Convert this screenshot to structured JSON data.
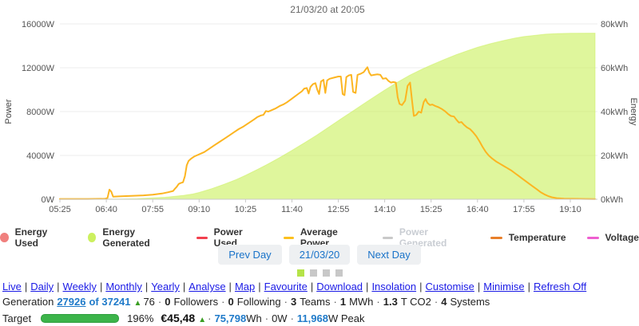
{
  "colors": {
    "accent-blue": "#1a73c9",
    "link-blue": "#1a1ae6",
    "stat-blue": "#1f7ac9",
    "up-green": "#3a9e23",
    "bar-green": "#3cb44a",
    "bar-green-border": "#2f9e3e",
    "dot-active": "#b5e348",
    "dot-inactive": "#c8c8c8",
    "legend-disabled": "#c9cdd3"
  },
  "chart_data": {
    "type": "area+line",
    "title": "21/03/20 at 20:05",
    "x_axis": {
      "range": [
        "05:25",
        "19:50"
      ],
      "ticks": [
        "05:25",
        "06:40",
        "07:55",
        "09:10",
        "10:25",
        "11:40",
        "12:55",
        "14:10",
        "15:25",
        "16:40",
        "17:55",
        "19:10"
      ]
    },
    "y_left": {
      "label": "Power",
      "max": 16000,
      "ticks": [
        "16000W",
        "12000W",
        "8000W",
        "4000W",
        "0W"
      ]
    },
    "y_right": {
      "label": "Energy",
      "max": 80,
      "ticks": [
        "80kWh",
        "60kWh",
        "40kWh",
        "20kWh",
        "0kWh"
      ]
    },
    "series": [
      {
        "name": "Energy Generated",
        "type": "area",
        "axis": "right",
        "color": "#ccf05f",
        "fill": "#ccf05f",
        "points": [
          [
            "05:25",
            0
          ],
          [
            "07:00",
            0.1
          ],
          [
            "07:30",
            0.3
          ],
          [
            "07:55",
            0.6
          ],
          [
            "08:15",
            0.9
          ],
          [
            "08:30",
            1.3
          ],
          [
            "08:45",
            1.8
          ],
          [
            "09:00",
            2.4
          ],
          [
            "09:10",
            3.1
          ],
          [
            "09:30",
            4.8
          ],
          [
            "09:50",
            6.8
          ],
          [
            "10:10",
            9.0
          ],
          [
            "10:25",
            10.9
          ],
          [
            "10:45",
            13.7
          ],
          [
            "11:00",
            15.9
          ],
          [
            "11:20",
            19.0
          ],
          [
            "11:40",
            22.3
          ],
          [
            "12:00",
            25.7
          ],
          [
            "12:20",
            29.2
          ],
          [
            "12:40",
            33.0
          ],
          [
            "13:00",
            36.8
          ],
          [
            "13:20",
            40.5
          ],
          [
            "13:40",
            44.3
          ],
          [
            "14:00",
            48.0
          ],
          [
            "14:10",
            49.8
          ],
          [
            "14:30",
            53.3
          ],
          [
            "14:50",
            56.5
          ],
          [
            "15:10",
            59.3
          ],
          [
            "15:25",
            61.2
          ],
          [
            "15:45",
            63.6
          ],
          [
            "16:05",
            65.9
          ],
          [
            "16:25",
            67.9
          ],
          [
            "16:40",
            69.3
          ],
          [
            "17:00",
            70.9
          ],
          [
            "17:20",
            72.3
          ],
          [
            "17:40",
            73.5
          ],
          [
            "17:55",
            74.2
          ],
          [
            "18:10",
            74.7
          ],
          [
            "18:30",
            75.3
          ],
          [
            "18:50",
            75.6
          ],
          [
            "19:10",
            75.75
          ],
          [
            "19:50",
            75.8
          ]
        ]
      },
      {
        "name": "Average Power",
        "type": "line",
        "axis": "left",
        "color": "#fcb521",
        "points": [
          [
            "05:25",
            30
          ],
          [
            "06:10",
            30
          ],
          [
            "06:38",
            40
          ],
          [
            "06:42",
            120
          ],
          [
            "06:45",
            880
          ],
          [
            "06:48",
            700
          ],
          [
            "06:51",
            240
          ],
          [
            "07:00",
            260
          ],
          [
            "07:20",
            310
          ],
          [
            "07:40",
            360
          ],
          [
            "07:55",
            420
          ],
          [
            "08:10",
            520
          ],
          [
            "08:20",
            640
          ],
          [
            "08:28",
            760
          ],
          [
            "08:30",
            900
          ],
          [
            "08:34",
            1150
          ],
          [
            "08:37",
            1400
          ],
          [
            "08:40",
            1480
          ],
          [
            "08:44",
            1550
          ],
          [
            "08:47",
            2100
          ],
          [
            "08:50",
            3100
          ],
          [
            "08:53",
            3500
          ],
          [
            "08:57",
            3700
          ],
          [
            "09:02",
            3900
          ],
          [
            "09:10",
            4100
          ],
          [
            "09:18",
            4300
          ],
          [
            "09:26",
            4600
          ],
          [
            "09:34",
            4900
          ],
          [
            "09:42",
            5200
          ],
          [
            "09:50",
            5500
          ],
          [
            "09:58",
            5800
          ],
          [
            "10:06",
            6100
          ],
          [
            "10:14",
            6400
          ],
          [
            "10:22",
            6650
          ],
          [
            "10:30",
            6950
          ],
          [
            "10:38",
            7250
          ],
          [
            "10:44",
            7500
          ],
          [
            "10:50",
            7650
          ],
          [
            "10:54",
            7700
          ],
          [
            "10:58",
            8050
          ],
          [
            "11:02",
            8000
          ],
          [
            "11:08",
            8150
          ],
          [
            "11:14",
            8300
          ],
          [
            "11:20",
            8500
          ],
          [
            "11:26",
            8650
          ],
          [
            "11:32",
            8850
          ],
          [
            "11:38",
            9100
          ],
          [
            "11:44",
            9350
          ],
          [
            "11:50",
            9600
          ],
          [
            "11:56",
            9850
          ],
          [
            "12:00",
            10100
          ],
          [
            "12:04",
            10150
          ],
          [
            "12:07",
            9650
          ],
          [
            "12:10",
            10250
          ],
          [
            "12:14",
            10500
          ],
          [
            "12:18",
            10600
          ],
          [
            "12:21",
            10000
          ],
          [
            "12:24",
            9600
          ],
          [
            "12:27",
            10750
          ],
          [
            "12:31",
            10900
          ],
          [
            "12:34",
            9700
          ],
          [
            "12:37",
            10850
          ],
          [
            "12:41",
            11000
          ],
          [
            "12:48",
            11100
          ],
          [
            "12:55",
            11200
          ],
          [
            "12:59",
            11200
          ],
          [
            "13:02",
            9600
          ],
          [
            "13:05",
            9500
          ],
          [
            "13:08",
            11150
          ],
          [
            "13:12",
            11300
          ],
          [
            "13:16",
            11350
          ],
          [
            "13:19",
            9800
          ],
          [
            "13:23",
            9700
          ],
          [
            "13:26",
            11350
          ],
          [
            "13:31",
            11450
          ],
          [
            "13:36",
            11600
          ],
          [
            "13:40",
            11900
          ],
          [
            "13:42",
            12050
          ],
          [
            "13:45",
            11550
          ],
          [
            "13:48",
            11300
          ],
          [
            "13:53",
            11350
          ],
          [
            "13:58",
            11400
          ],
          [
            "14:03",
            11350
          ],
          [
            "14:07",
            11000
          ],
          [
            "14:12",
            11050
          ],
          [
            "14:16",
            10800
          ],
          [
            "14:20",
            10650
          ],
          [
            "14:24",
            10700
          ],
          [
            "14:28",
            10650
          ],
          [
            "14:31",
            9300
          ],
          [
            "14:34",
            8700
          ],
          [
            "14:38",
            8600
          ],
          [
            "14:43",
            9000
          ],
          [
            "14:47",
            10350
          ],
          [
            "14:51",
            10650
          ],
          [
            "14:54",
            9100
          ],
          [
            "14:57",
            7600
          ],
          [
            "15:01",
            7700
          ],
          [
            "15:05",
            8000
          ],
          [
            "15:09",
            7900
          ],
          [
            "15:13",
            8850
          ],
          [
            "15:16",
            9150
          ],
          [
            "15:19",
            8800
          ],
          [
            "15:23",
            8600
          ],
          [
            "15:27",
            8650
          ],
          [
            "15:32",
            8500
          ],
          [
            "15:37",
            8400
          ],
          [
            "15:42",
            8250
          ],
          [
            "15:47",
            8050
          ],
          [
            "15:52",
            7800
          ],
          [
            "15:57",
            7600
          ],
          [
            "16:02",
            7550
          ],
          [
            "16:06",
            7250
          ],
          [
            "16:10",
            7000
          ],
          [
            "16:14",
            7050
          ],
          [
            "16:18",
            6800
          ],
          [
            "16:23",
            6550
          ],
          [
            "16:28",
            6400
          ],
          [
            "16:33",
            6100
          ],
          [
            "16:38",
            5750
          ],
          [
            "16:43",
            5300
          ],
          [
            "16:48",
            4800
          ],
          [
            "16:53",
            4350
          ],
          [
            "16:58",
            4000
          ],
          [
            "17:04",
            3700
          ],
          [
            "17:10",
            3450
          ],
          [
            "17:16",
            3250
          ],
          [
            "17:22",
            3050
          ],
          [
            "17:28",
            2850
          ],
          [
            "17:34",
            2650
          ],
          [
            "17:40",
            2400
          ],
          [
            "17:46",
            2150
          ],
          [
            "17:52",
            1900
          ],
          [
            "17:58",
            1650
          ],
          [
            "18:04",
            1400
          ],
          [
            "18:10",
            1150
          ],
          [
            "18:16",
            900
          ],
          [
            "18:22",
            650
          ],
          [
            "18:28",
            450
          ],
          [
            "18:34",
            300
          ],
          [
            "18:40",
            180
          ],
          [
            "18:48",
            100
          ],
          [
            "19:00",
            60
          ],
          [
            "19:15",
            40
          ],
          [
            "19:35",
            30
          ],
          [
            "19:50",
            25
          ]
        ]
      }
    ]
  },
  "legend": {
    "items": [
      {
        "label": "Energy Used",
        "marker": "circle",
        "color": "#f0807e",
        "disabled": false
      },
      {
        "label": "Energy Generated",
        "marker": "circle",
        "color": "#ccf05f",
        "disabled": false
      },
      {
        "label": "Power Used",
        "marker": "line",
        "color": "#f2404e",
        "disabled": false
      },
      {
        "label": "Average Power",
        "marker": "line",
        "color": "#fcc01e",
        "disabled": false
      },
      {
        "label": "Power Generated",
        "marker": "line",
        "color": "#c9c9c9",
        "disabled": true
      },
      {
        "label": "Temperature",
        "marker": "line",
        "color": "#e87f2a",
        "disabled": false
      },
      {
        "label": "Voltage",
        "marker": "line",
        "color": "#ee5fd0",
        "disabled": false
      }
    ]
  },
  "controls": {
    "prev": "Prev Day",
    "date": "21/03/20",
    "next": "Next Day"
  },
  "pager": {
    "count": 4,
    "active": 0
  },
  "nav": {
    "separator": "|",
    "links": [
      "Live",
      "Daily",
      "Weekly",
      "Monthly",
      "Yearly",
      "Analyse",
      "Map",
      "Favourite",
      "Download",
      "Insolation",
      "Customise",
      "Minimise",
      "Refresh Off"
    ]
  },
  "stats": {
    "generation_segments": [
      {
        "t": "Generation",
        "c": "p"
      },
      {
        "t": "27926",
        "c": "lk"
      },
      {
        "t": "of 37241",
        "c": "bb"
      },
      {
        "t": "▲",
        "c": "up"
      },
      {
        "t": "76",
        "c": "p"
      },
      {
        "t": "·",
        "c": "sp"
      },
      {
        "t": "0",
        "c": "b"
      },
      {
        "t": "Followers",
        "c": "p"
      },
      {
        "t": "·",
        "c": "sp"
      },
      {
        "t": "0",
        "c": "b"
      },
      {
        "t": "Following",
        "c": "p"
      },
      {
        "t": "·",
        "c": "sp"
      },
      {
        "t": "3",
        "c": "b"
      },
      {
        "t": "Teams",
        "c": "p"
      },
      {
        "t": "·",
        "c": "sp"
      },
      {
        "t": "1",
        "c": "b"
      },
      {
        "t": "MWh",
        "c": "p"
      },
      {
        "t": "·",
        "c": "sp"
      },
      {
        "t": "1.3",
        "c": "b"
      },
      {
        "t": "T CO2",
        "c": "p"
      },
      {
        "t": "·",
        "c": "sp"
      },
      {
        "t": "4",
        "c": "b"
      },
      {
        "t": "Systems",
        "c": "p"
      }
    ],
    "target": {
      "label": "Target",
      "progress_pct": "196%",
      "segments": [
        {
          "t": "€45,48",
          "c": "eur"
        },
        {
          "t": "▲",
          "c": "up"
        },
        {
          "t": "·",
          "c": "sp"
        },
        {
          "t": "75,798",
          "c": "bb t"
        },
        {
          "t": "Wh",
          "c": "p"
        },
        {
          "t": "·",
          "c": "sp"
        },
        {
          "t": "0W",
          "c": "p"
        },
        {
          "t": "·",
          "c": "sp"
        },
        {
          "t": "11,968",
          "c": "bb t"
        },
        {
          "t": "W Peak",
          "c": "p"
        }
      ]
    }
  }
}
